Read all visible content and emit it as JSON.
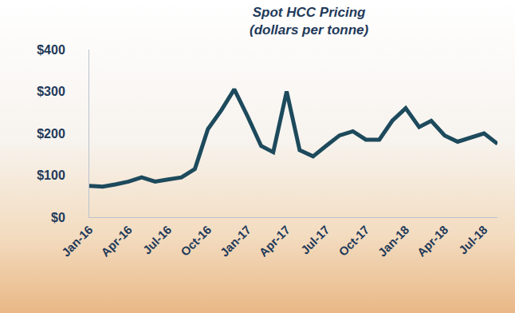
{
  "chart_data": {
    "type": "line",
    "title": "Spot HCC Pricing",
    "subtitle": "(dollars per tonne)",
    "x": [
      "2016-01",
      "2016-02",
      "2016-03",
      "2016-04",
      "2016-05",
      "2016-06",
      "2016-07",
      "2016-08",
      "2016-09",
      "2016-10",
      "2016-11",
      "2016-12",
      "2017-01",
      "2017-02",
      "2017-03",
      "2017-04",
      "2017-05",
      "2017-06",
      "2017-07",
      "2017-08",
      "2017-09",
      "2017-10",
      "2017-11",
      "2017-12",
      "2018-01",
      "2018-02",
      "2018-03",
      "2018-04",
      "2018-05",
      "2018-06",
      "2018-07",
      "2018-08"
    ],
    "values": [
      75,
      73,
      78,
      85,
      95,
      85,
      90,
      95,
      115,
      210,
      255,
      305,
      240,
      170,
      155,
      300,
      160,
      145,
      170,
      195,
      205,
      185,
      185,
      230,
      260,
      215,
      230,
      195,
      180,
      190,
      200,
      175
    ],
    "color": "#1d4a5c",
    "line_style": "solid",
    "xlim": [
      "2016-01",
      "2018-08"
    ],
    "xticks": [
      {
        "value": "2016-01",
        "label": "Jan-16"
      },
      {
        "value": "2016-04",
        "label": "Apr-16"
      },
      {
        "value": "2016-07",
        "label": "Jul-16"
      },
      {
        "value": "2016-10",
        "label": "Oct-16"
      },
      {
        "value": "2017-01",
        "label": "Jan-17"
      },
      {
        "value": "2017-04",
        "label": "Apr-17"
      },
      {
        "value": "2017-07",
        "label": "Jul-17"
      },
      {
        "value": "2017-10",
        "label": "Oct-17"
      },
      {
        "value": "2018-01",
        "label": "Jan-18"
      },
      {
        "value": "2018-04",
        "label": "Apr-18"
      },
      {
        "value": "2018-07",
        "label": "Jul-18"
      }
    ],
    "ylim": [
      0,
      400
    ],
    "yticks": [
      {
        "value": 0,
        "label": "$0"
      },
      {
        "value": 100,
        "label": "$100"
      },
      {
        "value": 200,
        "label": "$200"
      },
      {
        "value": 300,
        "label": "$300"
      },
      {
        "value": 400,
        "label": "$400"
      }
    ],
    "grid": false
  }
}
